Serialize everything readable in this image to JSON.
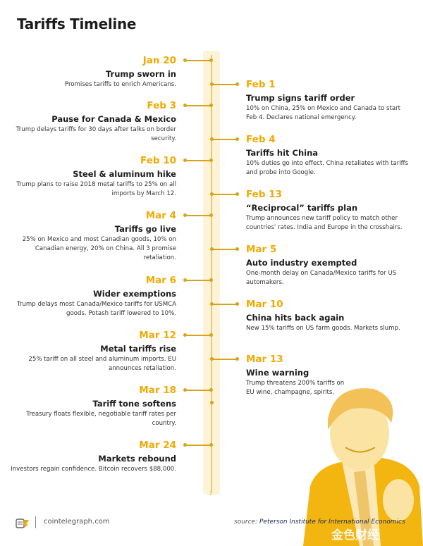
{
  "title": "Tariffs Timeline",
  "events_left": [
    {
      "date": "Jan 20",
      "headline": "Trump sworn in",
      "description": "Promises tariffs to enrich Americans."
    },
    {
      "date": "Feb 3",
      "headline": "Pause for Canada & Mexico",
      "description": "Trump delays tariffs for 30 days after talks on border security."
    },
    {
      "date": "Feb 10",
      "headline": "Steel & aluminum hike",
      "description": "Trump plans to raise 2018 metal tariffs to 25% on all imports by March 12."
    },
    {
      "date": "Mar 4",
      "headline": "Tariffs go live",
      "description": "25% on Mexico and most Canadian goods, 10% on Canadian energy, 20% on China. All 3 promise retaliation."
    },
    {
      "date": "Mar 6",
      "headline": "Wider exemptions",
      "description": "Trump delays most Canada/Mexico tariffs for USMCA goods. Potash tariff lowered to 10%."
    },
    {
      "date": "Mar 12",
      "headline": "Metal tariffs rise",
      "description": "25% tariff on all steel and aluminum imports. EU announces retaliation."
    },
    {
      "date": "Mar 18",
      "headline": "Tariff tone softens",
      "description": "Treasury floats flexible, negotiable tariff rates per country."
    },
    {
      "date": "Mar 24",
      "headline": "Markets rebound",
      "description": "Investors regain confidence. Bitcoin recovers $88,000."
    }
  ],
  "events_right": [
    {
      "date": "Feb 1",
      "headline": "Trump signs tariff order",
      "description": "10% on China, 25% on Mexico and Canada to start Feb 4. Declares national emergency."
    },
    {
      "date": "Feb 4",
      "headline": "Tariffs hit China",
      "description": "10% duties go into effect. China retaliates with tariffs and probe into Google."
    },
    {
      "date": "Feb 13",
      "headline": "“Reciprocal” tariffs plan",
      "description": "Trump announces new tariff policy to match other countries' rates. India and Europe in the crosshairs."
    },
    {
      "date": "Mar 5",
      "headline": "Auto industry exempted",
      "description": "One-month delay on Canada/Mexico tariffs for US automakers."
    },
    {
      "date": "Mar 10",
      "headline": "China hits back again",
      "description": "New 15% tariffs on US farm goods. Markets slump."
    },
    {
      "date": "Mar 13",
      "headline": "Wine warning",
      "description": "Trump threatens 200% tariffs on EU wine, champagne, spirits."
    }
  ],
  "footer": {
    "site": "cointelegraph.com",
    "source_label": "source:",
    "source_name": "Peterson Institute for International Economics",
    "watermark": "金色财经"
  },
  "colors": {
    "accent": "#f2a900",
    "band": "#fdf3d6",
    "connector": "#d9a21b"
  }
}
